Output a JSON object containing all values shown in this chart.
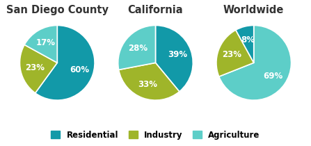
{
  "charts": [
    {
      "title": "San Diego County",
      "slices": [
        {
          "value": 60,
          "label": "60%",
          "color": "#1299a8"
        },
        {
          "value": 23,
          "label": "23%",
          "color": "#9fb52a"
        },
        {
          "value": 17,
          "label": "17%",
          "color": "#5dcec8"
        }
      ],
      "startangle": 90,
      "counterclock": false
    },
    {
      "title": "California",
      "slices": [
        {
          "value": 39,
          "label": "39%",
          "color": "#1299a8"
        },
        {
          "value": 33,
          "label": "33%",
          "color": "#9fb52a"
        },
        {
          "value": 28,
          "label": "28%",
          "color": "#5dcec8"
        }
      ],
      "startangle": 90,
      "counterclock": false
    },
    {
      "title": "Worldwide",
      "slices": [
        {
          "value": 69,
          "label": "69%",
          "color": "#5dcec8"
        },
        {
          "value": 23,
          "label": "23%",
          "color": "#9fb52a"
        },
        {
          "value": 8,
          "label": "8%",
          "color": "#1299a8"
        }
      ],
      "startangle": 90,
      "counterclock": false
    }
  ],
  "legend_items": [
    {
      "label": "Residential",
      "color": "#1299a8"
    },
    {
      "label": "Industry",
      "color": "#9fb52a"
    },
    {
      "label": "Agriculture",
      "color": "#5dcec8"
    }
  ],
  "bg_color": "#ffffff",
  "text_color": "#ffffff",
  "label_fontsize": 8.5,
  "title_fontsize": 10.5,
  "title_color": "#333333",
  "label_r": 0.62
}
